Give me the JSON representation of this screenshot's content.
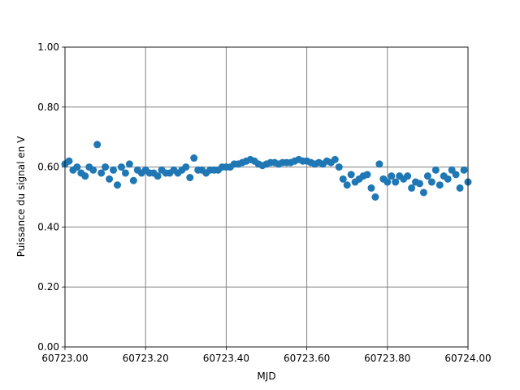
{
  "chart_data": {
    "type": "scatter",
    "x_label": "MJD",
    "y_label": "Puissance du signal en V",
    "color": "#1f77b4",
    "grid": true,
    "xlim": [
      60723.0,
      60724.0
    ],
    "ylim": [
      0,
      1
    ],
    "xticks": [
      {
        "value": 60723.0,
        "label": "60723.00"
      },
      {
        "value": 60723.2,
        "label": "60723.20"
      },
      {
        "value": 60723.4,
        "label": "60723.40"
      },
      {
        "value": 60723.6,
        "label": "60723.60"
      },
      {
        "value": 60723.8,
        "label": "60723.80"
      },
      {
        "value": 60724.0,
        "label": "60724.00"
      }
    ],
    "yticks": [
      {
        "value": 0,
        "label": "0.00"
      },
      {
        "value": 0.2,
        "label": "0.20"
      },
      {
        "value": 0.4,
        "label": "0.40"
      },
      {
        "value": 0.6,
        "label": "0.60"
      },
      {
        "value": 0.8,
        "label": "0.80"
      },
      {
        "value": 1,
        "label": "1.00"
      }
    ],
    "x": [
      60723.0,
      60723.01,
      60723.02,
      60723.03,
      60723.04,
      60723.05,
      60723.06,
      60723.07,
      60723.08,
      60723.09,
      60723.1,
      60723.11,
      60723.12,
      60723.13,
      60723.14,
      60723.15,
      60723.16,
      60723.17,
      60723.18,
      60723.19,
      60723.2,
      60723.21,
      60723.22,
      60723.23,
      60723.24,
      60723.25,
      60723.26,
      60723.27,
      60723.28,
      60723.29,
      60723.3,
      60723.31,
      60723.32,
      60723.33,
      60723.34,
      60723.35,
      60723.36,
      60723.37,
      60723.38,
      60723.39,
      60723.4,
      60723.41,
      60723.42,
      60723.43,
      60723.44,
      60723.45,
      60723.46,
      60723.47,
      60723.48,
      60723.49,
      60723.5,
      60723.51,
      60723.52,
      60723.53,
      60723.54,
      60723.55,
      60723.56,
      60723.57,
      60723.58,
      60723.59,
      60723.6,
      60723.61,
      60723.62,
      60723.63,
      60723.64,
      60723.65,
      60723.66,
      60723.67,
      60723.68,
      60723.69,
      60723.7,
      60723.71,
      60723.72,
      60723.73,
      60723.74,
      60723.75,
      60723.76,
      60723.77,
      60723.78,
      60723.79,
      60723.8,
      60723.81,
      60723.82,
      60723.83,
      60723.84,
      60723.85,
      60723.86,
      60723.87,
      60723.88,
      60723.89,
      60723.9,
      60723.91,
      60723.92,
      60723.93,
      60723.94,
      60723.95,
      60723.96,
      60723.97,
      60723.98,
      60723.99,
      60724.0
    ],
    "values": [
      0.61,
      0.62,
      0.59,
      0.6,
      0.58,
      0.57,
      0.6,
      0.59,
      0.675,
      0.58,
      0.6,
      0.56,
      0.59,
      0.54,
      0.6,
      0.58,
      0.61,
      0.555,
      0.59,
      0.58,
      0.59,
      0.58,
      0.58,
      0.57,
      0.59,
      0.58,
      0.58,
      0.59,
      0.58,
      0.59,
      0.6,
      0.565,
      0.63,
      0.59,
      0.59,
      0.58,
      0.59,
      0.59,
      0.59,
      0.6,
      0.6,
      0.6,
      0.61,
      0.61,
      0.615,
      0.62,
      0.625,
      0.62,
      0.61,
      0.605,
      0.61,
      0.615,
      0.615,
      0.61,
      0.615,
      0.615,
      0.615,
      0.62,
      0.625,
      0.62,
      0.62,
      0.615,
      0.61,
      0.615,
      0.61,
      0.62,
      0.615,
      0.625,
      0.6,
      0.56,
      0.54,
      0.575,
      0.55,
      0.56,
      0.57,
      0.575,
      0.53,
      0.5,
      0.61,
      0.56,
      0.55,
      0.57,
      0.55,
      0.57,
      0.56,
      0.57,
      0.53,
      0.55,
      0.545,
      0.515,
      0.57,
      0.55,
      0.59,
      0.54,
      0.57,
      0.56,
      0.59,
      0.575,
      0.53,
      0.59,
      0.55
    ]
  }
}
